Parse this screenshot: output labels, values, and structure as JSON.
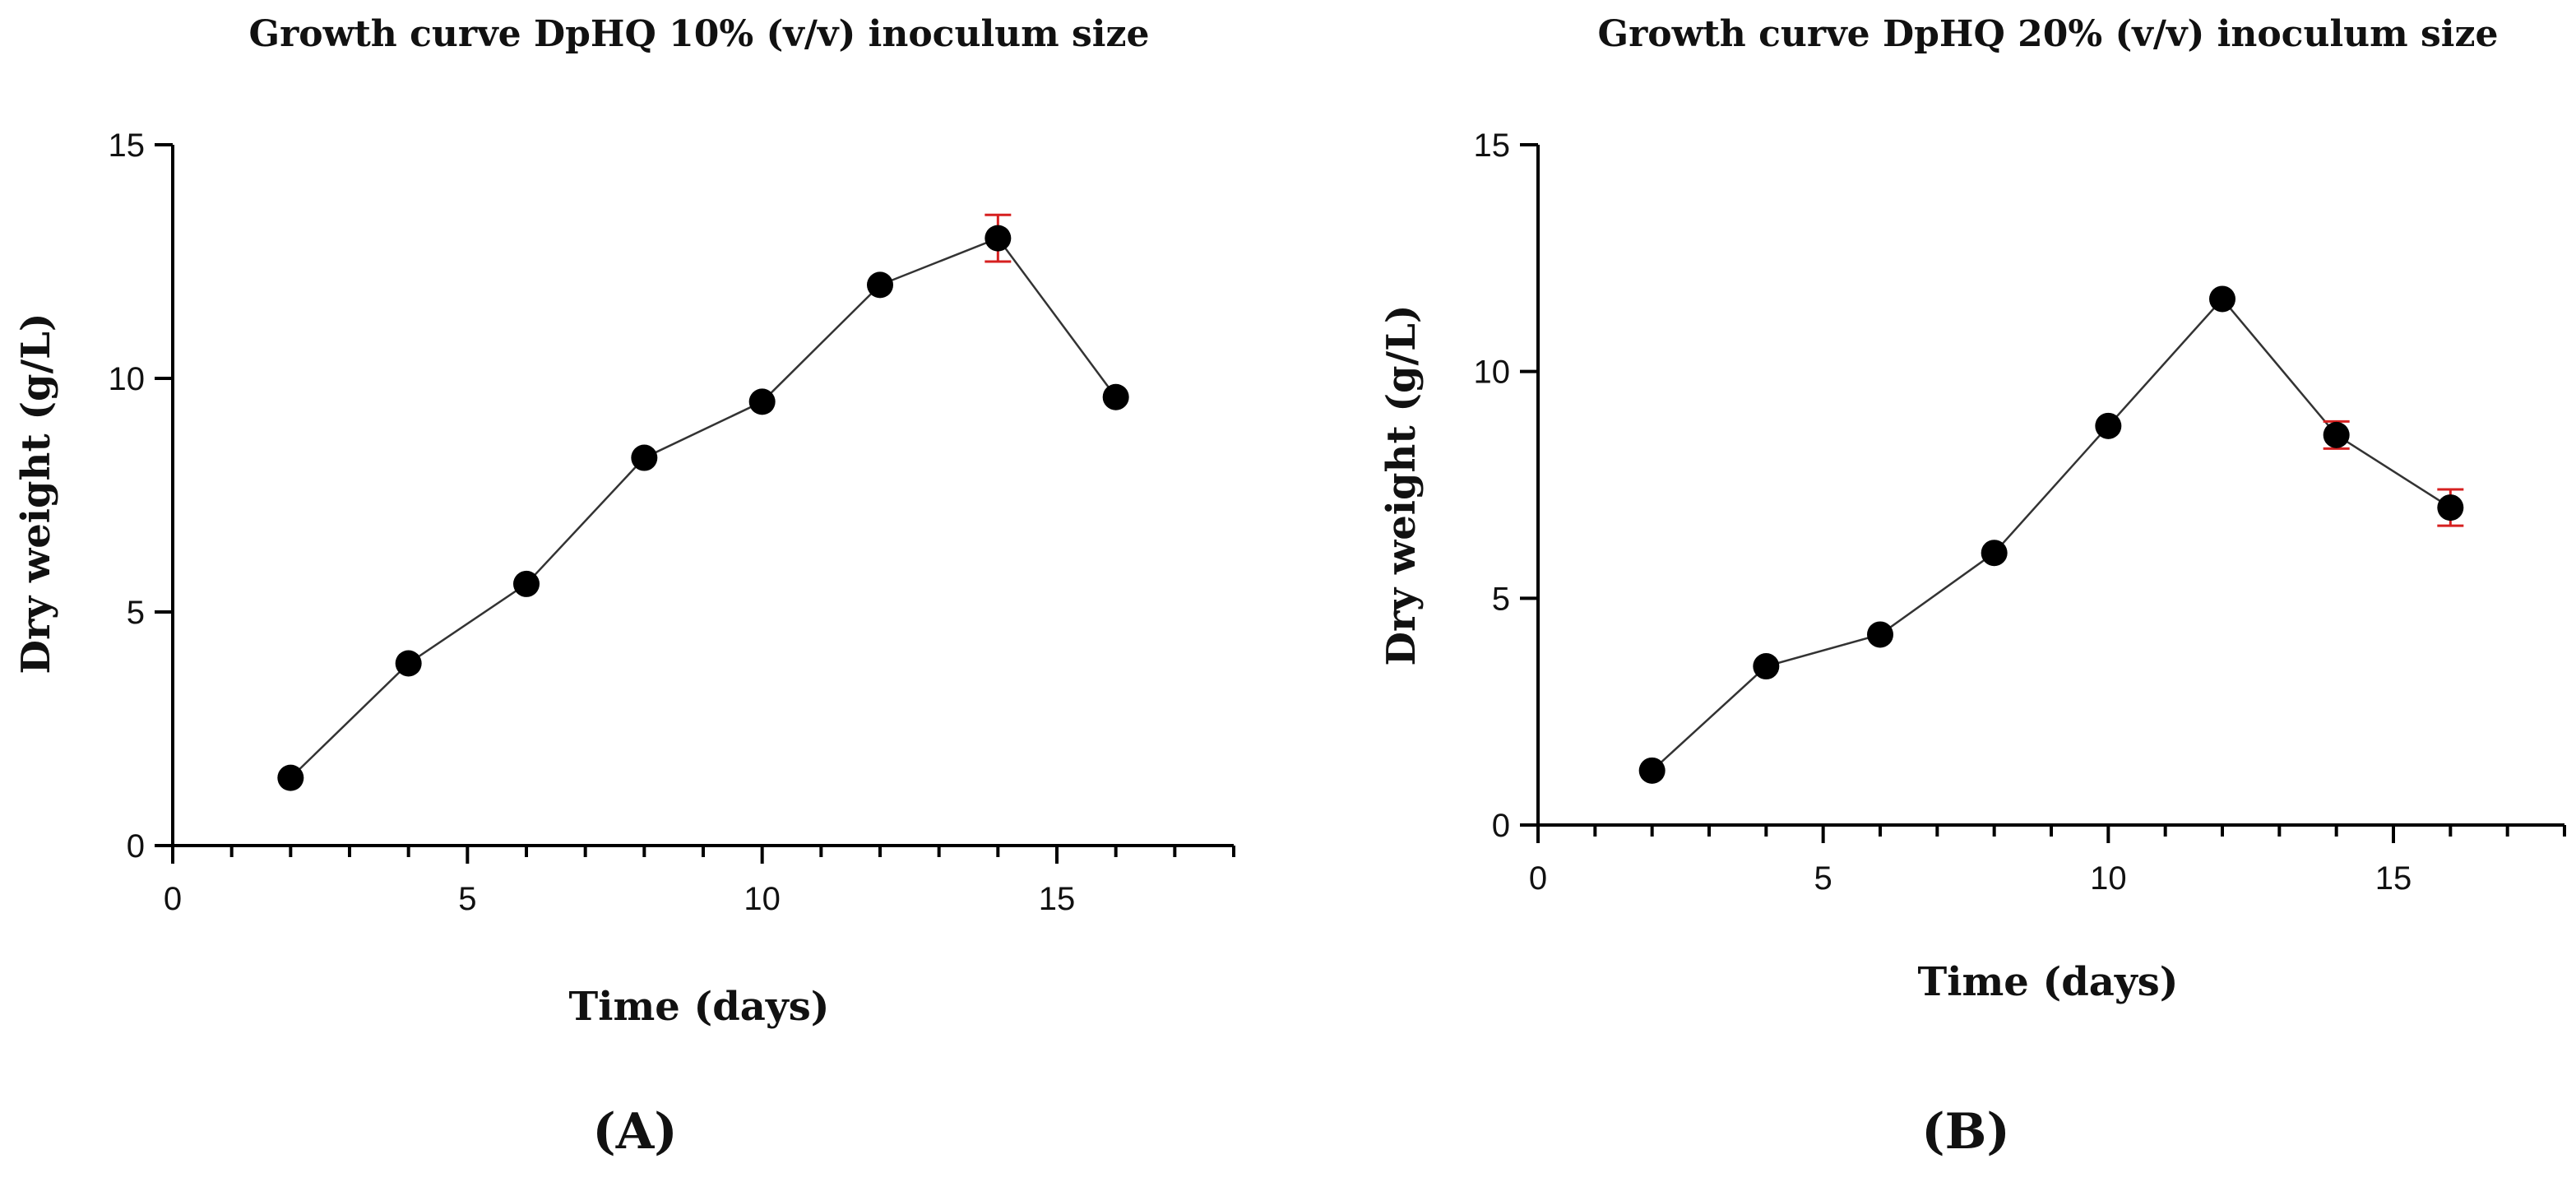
{
  "colors": {
    "marker": "#000000",
    "line": "#333333",
    "error_bar": "#d62020",
    "axis": "#000000"
  },
  "panels": [
    {
      "label": "(A)"
    },
    {
      "label": "(B)"
    }
  ],
  "chart_data": [
    {
      "type": "line",
      "title": "Growth curve DpHQ 10% (v/v) inoculum size",
      "xlabel": "Time (days)",
      "ylabel": "Dry weight (g/L)",
      "xlim": [
        0,
        18
      ],
      "ylim": [
        0,
        15
      ],
      "xticks": [
        0,
        5,
        10,
        15
      ],
      "yticks": [
        0,
        5,
        10,
        15
      ],
      "x_minor_step": 1,
      "grid": false,
      "markers": "filled-circle",
      "series": [
        {
          "x": [
            2,
            4,
            6,
            8,
            10,
            12,
            14,
            16
          ],
          "y": [
            1.45,
            3.9,
            5.6,
            8.3,
            9.5,
            12.0,
            13.0,
            9.6
          ],
          "error": [
            0,
            0,
            0,
            0,
            0,
            0,
            0.5,
            0
          ]
        }
      ]
    },
    {
      "type": "line",
      "title": "Growth curve DpHQ 20% (v/v) inoculum size",
      "xlabel": "Time (days)",
      "ylabel": "Dry weight (g/L)",
      "xlim": [
        0,
        18
      ],
      "ylim": [
        0,
        15
      ],
      "xticks": [
        0,
        5,
        10,
        15
      ],
      "yticks": [
        0,
        5,
        10,
        15
      ],
      "x_minor_step": 1,
      "grid": false,
      "markers": "filled-circle",
      "series": [
        {
          "x": [
            2,
            4,
            6,
            8,
            10,
            12,
            14,
            16
          ],
          "y": [
            1.2,
            3.5,
            4.2,
            6.0,
            8.8,
            11.6,
            8.6,
            7.0
          ],
          "error": [
            0,
            0,
            0,
            0,
            0,
            0,
            0.3,
            0.4
          ]
        }
      ]
    }
  ]
}
